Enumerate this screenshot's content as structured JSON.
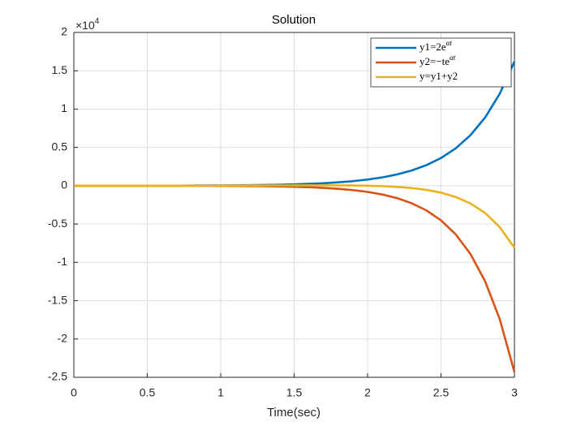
{
  "chart_data": {
    "type": "line",
    "title": "Solution",
    "x_label": "Time(sec)",
    "y_exponent_base": "×10",
    "y_exponent": "4",
    "x": [
      0,
      0.1,
      0.2,
      0.3,
      0.4,
      0.5,
      0.6,
      0.7,
      0.8,
      0.9,
      1,
      1.1,
      1.2,
      1.3,
      1.4,
      1.5,
      1.6,
      1.7,
      1.8,
      1.9,
      2,
      2.1,
      2.2,
      2.3,
      2.4,
      2.5,
      2.6,
      2.7,
      2.8,
      2.9,
      3
    ],
    "series": [
      {
        "name": "y1=2e",
        "name_superscript": "αt",
        "color": "#0072bd",
        "values": [
          0.0002,
          0.0003,
          0.0004,
          0.0005,
          0.0007,
          0.0009,
          0.0012,
          0.0016,
          0.0022,
          0.003,
          0.004,
          0.0054,
          0.0073,
          0.0099,
          0.0133,
          0.018,
          0.0243,
          0.0328,
          0.0443,
          0.0598,
          0.0807,
          0.1089,
          0.147,
          0.1985,
          0.2679,
          0.3616,
          0.4881,
          0.6589,
          0.8894,
          1.2006,
          1.6206
        ]
      },
      {
        "name": "y2=−te",
        "name_superscript": "αt",
        "color": "#d95319",
        "values": [
          0,
          0,
          0,
          -0.0001,
          -0.0001,
          -0.0002,
          -0.0004,
          -0.0006,
          -0.0009,
          -0.0013,
          -0.002,
          -0.003,
          -0.0044,
          -0.0064,
          -0.0093,
          -0.0135,
          -0.0194,
          -0.0279,
          -0.0399,
          -0.0568,
          -0.0807,
          -0.1144,
          -0.1617,
          -0.2282,
          -0.3215,
          -0.452,
          -0.6346,
          -0.8895,
          -1.2452,
          -1.7408,
          -2.4309
        ]
      },
      {
        "name": "y=y1+y2",
        "color": "#edb120",
        "values": [
          0.0002,
          0.0003,
          0.0003,
          0.0004,
          0.0005,
          0.0007,
          0.0008,
          0.0011,
          0.0013,
          0.0016,
          0.002,
          0.0024,
          0.0029,
          0.0035,
          0.004,
          0.0045,
          0.0049,
          0.0049,
          0.0044,
          0.003,
          0,
          -0.0054,
          -0.0147,
          -0.0298,
          -0.0536,
          -0.0904,
          -0.1464,
          -0.2306,
          -0.3558,
          -0.5403,
          -0.8103
        ]
      }
    ],
    "xlim": [
      0,
      3
    ],
    "xticks": [
      0,
      0.5,
      1,
      1.5,
      2,
      2.5,
      3
    ],
    "ylim": [
      -2.5,
      2
    ],
    "yticks": [
      -2.5,
      -2,
      -1.5,
      -1,
      -0.5,
      0,
      0.5,
      1,
      1.5,
      2
    ],
    "grid": true,
    "legend": "top-right"
  }
}
